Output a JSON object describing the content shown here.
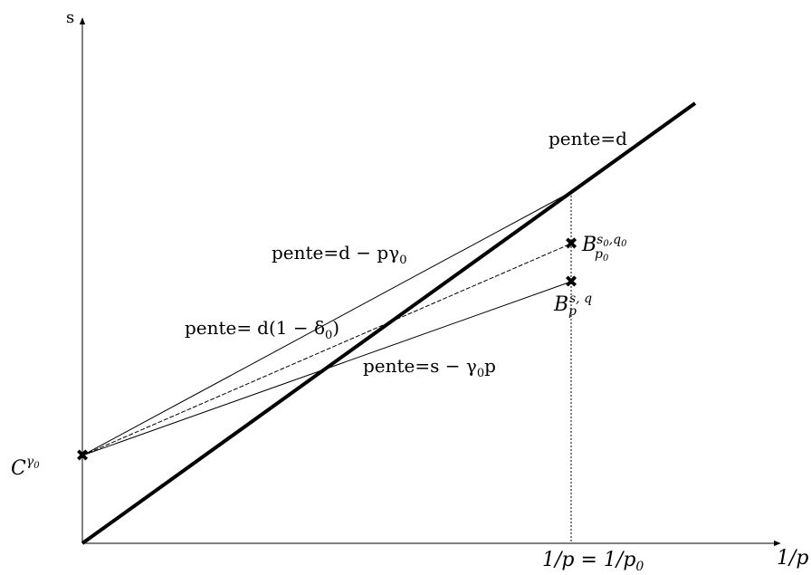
{
  "axes": {
    "y_label": "s",
    "x_label": "1/p"
  },
  "lines": {
    "main": "pente=d",
    "upper": "pente=d − pγ",
    "upper_sub": "0",
    "middle_prefix": "pente=",
    "middle_expr": "d(1 − δ",
    "middle_sub": "0",
    "middle_close": ")",
    "lower": "pente=s − γ",
    "lower_sub": "0",
    "lower_tail": "p"
  },
  "points": {
    "c_base": "C",
    "c_sup": "γ",
    "c_sup_sub": "0",
    "b0_base": "B",
    "b0_sub": "p",
    "b0_sub_sub": "0",
    "b0_sup": "s",
    "b0_sup_sub": "0",
    "b0_sup_sep": ",q",
    "b0_sup_sub2": "0",
    "b_base": "B",
    "b_sub": "p",
    "b_sup": "s, q"
  },
  "x_tick": {
    "left": "1/p = 1/p",
    "left_sub": "0"
  },
  "marker_symbol": "✖"
}
